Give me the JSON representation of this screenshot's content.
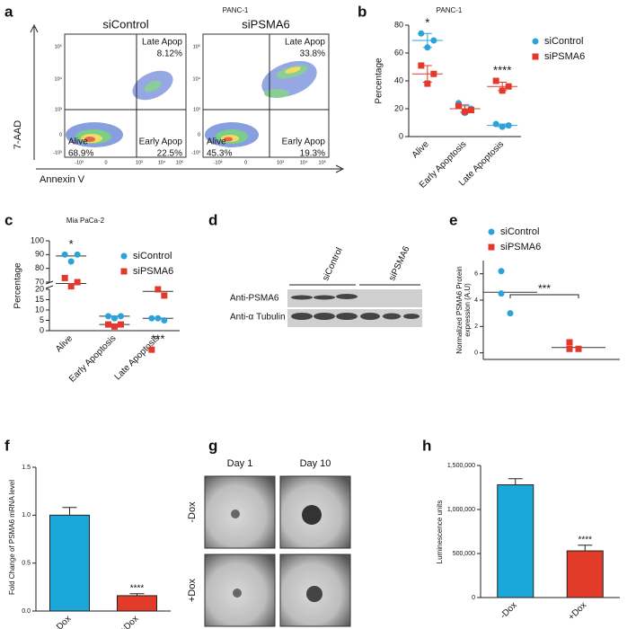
{
  "panel_labels": [
    "a",
    "d",
    "g"
  ],
  "flow": {
    "title": "PANC-1",
    "ylabel": "7-AAD",
    "xlabel": "Annexin V",
    "yticks": [
      "10⁵",
      "10⁴",
      "10³",
      "0",
      "-10³"
    ],
    "xticks": [
      "-10³",
      "0",
      "10³",
      "10⁴",
      "10⁵"
    ],
    "plots": [
      {
        "name": "siControl",
        "quadrants": [
          {
            "label": "Late Apop",
            "percent": "8.12%"
          },
          {
            "label": "Alive",
            "percent": "68.9%"
          },
          {
            "label": "Early Apop",
            "percent": "22.5%"
          }
        ]
      },
      {
        "name": "siPSMA6",
        "quadrants": [
          {
            "label": "Late Apop",
            "percent": "33.8%"
          },
          {
            "label": "Alive",
            "percent": "45.3%"
          },
          {
            "label": "Early Apop",
            "percent": "19.3%"
          }
        ]
      }
    ]
  },
  "blot": {
    "lanes": [
      "siControl",
      "siPSMA6"
    ],
    "rows": [
      "Anti-PSMA6",
      "Anti-α Tubulin"
    ]
  },
  "spheres": {
    "columns": [
      "Day 1",
      "Day 10"
    ],
    "rows": [
      "-Dox",
      "+Dox"
    ]
  },
  "chart_data": [
    {
      "type": "dot",
      "label": "b",
      "title": "PANC-1",
      "ylabel": "Percentage",
      "categories": [
        "Alive",
        "Early Apoptosis",
        "Late Apoptosis"
      ],
      "series": [
        {
          "name": "siControl",
          "color": "#2ba2d8",
          "marker": "circle",
          "values": [
            [
              74,
              69,
              64
            ],
            [
              24,
              20,
              17
            ],
            [
              9,
              8,
              7
            ]
          ],
          "means": [
            69,
            20,
            8
          ],
          "errors": [
            5,
            3,
            1
          ]
        },
        {
          "name": "siPSMA6",
          "color": "#e2392b",
          "marker": "square",
          "values": [
            [
              51,
              45,
              38
            ],
            [
              22,
              19,
              18
            ],
            [
              40,
              36,
              33
            ]
          ],
          "means": [
            45,
            20,
            36
          ],
          "errors": [
            6,
            2,
            3
          ]
        }
      ],
      "annotations": [
        "*",
        null,
        "****"
      ],
      "ylim": [
        0,
        80
      ],
      "yticks": [
        0,
        20,
        40,
        60,
        80
      ]
    },
    {
      "type": "dot",
      "label": "c",
      "title": "Mia PaCa-2",
      "ylabel": "Percentage",
      "categories": [
        "Alive",
        "Early Apoptosis",
        "Late Apoptosis"
      ],
      "series": [
        {
          "name": "siControl",
          "color": "#2ba2d8",
          "marker": "circle",
          "values": [
            [
              90,
              90,
              85
            ],
            [
              7,
              7,
              6
            ],
            [
              6,
              5,
              6
            ]
          ],
          "means": [
            89,
            7,
            6
          ]
        },
        {
          "name": "siPSMA6",
          "color": "#e2392b",
          "marker": "square",
          "values": [
            [
              73,
              70,
              67
            ],
            [
              3,
              3,
              2
            ],
            [
              21,
              17,
              20
            ]
          ],
          "means": [
            69,
            3,
            19
          ]
        }
      ],
      "annotations": [
        "*",
        null,
        "***"
      ],
      "segments": [
        {
          "ylim": [
            0,
            20
          ],
          "yticks": [
            0,
            5,
            10,
            15,
            20
          ]
        },
        {
          "ylim": [
            70,
            100
          ],
          "yticks": [
            70,
            80,
            90,
            100
          ]
        }
      ]
    },
    {
      "type": "dot",
      "label": "e",
      "ylabel": [
        "Normalized PSMA6 Protein",
        "expression (A.U)"
      ],
      "series": [
        {
          "name": "siControl",
          "color": "#2ba2d8",
          "marker": "circle",
          "values": [
            6.2,
            4.5,
            3.0
          ],
          "mean": 4.6
        },
        {
          "name": "siPSMA6",
          "color": "#e2392b",
          "marker": "square",
          "values": [
            0.8,
            0.3,
            0.3
          ],
          "mean": 0.4
        }
      ],
      "annotation": "***",
      "ylim": [
        -0.5,
        7
      ],
      "yticks": [
        0,
        2,
        4,
        6
      ]
    },
    {
      "type": "bar",
      "label": "f",
      "ylabel": "Fold Change of PSMA6 mRNA level",
      "categories": [
        "-Dox",
        "+Dox"
      ],
      "values": [
        1.0,
        0.16
      ],
      "errors": [
        0.08,
        0.02
      ],
      "colors": [
        "#1ba8d8",
        "#e33b2a"
      ],
      "annotations": [
        null,
        "****"
      ],
      "ylim": [
        0,
        1.5
      ],
      "yticks": [
        {
          "value": 0,
          "label": "0.0"
        },
        0.5,
        {
          "value": 1,
          "label": "1.0"
        },
        1.5
      ]
    },
    {
      "type": "bar",
      "label": "h",
      "ylabel": "Luminescence units",
      "categories": [
        "-Dox",
        "+Dox"
      ],
      "values": [
        1280000,
        530000
      ],
      "errors": [
        70000,
        65000
      ],
      "colors": [
        "#1ba8d8",
        "#e33b2a"
      ],
      "annotations": [
        null,
        "****"
      ],
      "ylim": [
        0,
        1500000
      ],
      "yticks": [
        0,
        {
          "value": 500000,
          "label": "500,000"
        },
        {
          "value": 1000000,
          "label": "1,000,000"
        },
        {
          "value": 1500000,
          "label": "1,500,000"
        }
      ]
    }
  ]
}
